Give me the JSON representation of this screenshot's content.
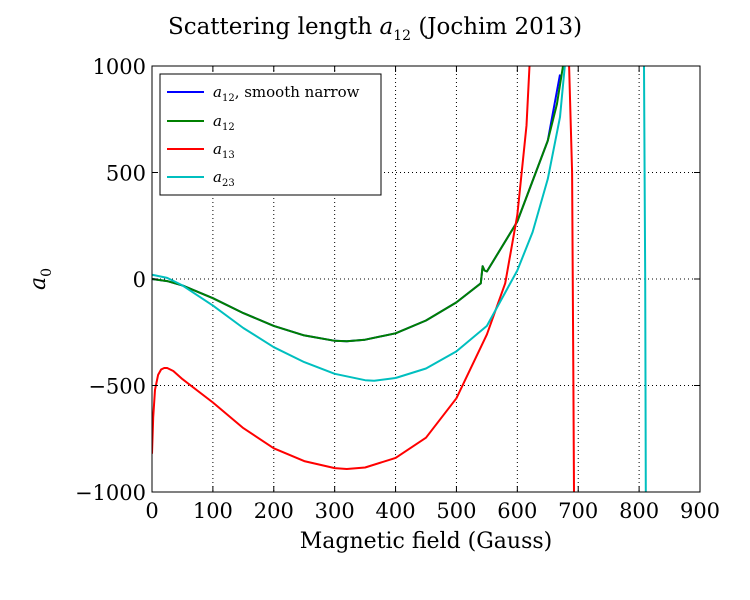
{
  "chart_data": {
    "type": "line",
    "title": "Scattering length",
    "title_symbol": "a",
    "title_subscript": "12",
    "title_suffix": "(Jochim 2013)",
    "xlabel": "Magnetic field (Gauss)",
    "ylabel_symbol": "a",
    "ylabel_subscript": "0",
    "xlim": [
      0,
      900
    ],
    "ylim": [
      -1000,
      1000
    ],
    "xticks": [
      0,
      100,
      200,
      300,
      400,
      500,
      600,
      700,
      800,
      900
    ],
    "yticks": [
      -1000,
      -500,
      0,
      500,
      1000
    ],
    "xtick_labels": [
      "0",
      "100",
      "200",
      "300",
      "400",
      "500",
      "600",
      "700",
      "800",
      "900"
    ],
    "ytick_labels": [
      "−1000",
      "−500",
      "0",
      "500",
      "1000"
    ],
    "grid": true,
    "grid_style": "dotted",
    "legend_position": "top-left",
    "series": [
      {
        "name_symbol": "a",
        "name_subscript": "12",
        "name_suffix": ", smooth narrow",
        "color": "#0000ff",
        "x": [
          0,
          25,
          50,
          100,
          150,
          200,
          250,
          300,
          320,
          350,
          400,
          450,
          500,
          540,
          543,
          546,
          550,
          600,
          650,
          670
        ],
        "y": [
          0,
          -10,
          -30,
          -90,
          -160,
          -220,
          -265,
          -290,
          -292,
          -285,
          -255,
          -195,
          -110,
          -20,
          60,
          40,
          35,
          270,
          650,
          960
        ]
      },
      {
        "name_symbol": "a",
        "name_subscript": "12",
        "name_suffix": "",
        "color": "#008000",
        "x": [
          0,
          25,
          50,
          100,
          150,
          200,
          250,
          300,
          320,
          350,
          400,
          450,
          500,
          540,
          543,
          546,
          550,
          600,
          650,
          665,
          675
        ],
        "y": [
          0,
          -10,
          -30,
          -90,
          -160,
          -220,
          -265,
          -290,
          -292,
          -285,
          -255,
          -195,
          -110,
          -20,
          60,
          40,
          35,
          270,
          650,
          820,
          1000
        ]
      },
      {
        "name_symbol": "a",
        "name_subscript": "13",
        "name_suffix": "",
        "color": "#ff0000",
        "x": [
          0,
          2,
          5,
          10,
          15,
          20,
          25,
          35,
          50,
          100,
          150,
          200,
          250,
          300,
          320,
          350,
          400,
          450,
          500,
          550,
          580,
          600,
          615,
          620,
          null,
          685,
          690,
          692,
          693
        ],
        "y": [
          -820,
          -650,
          -520,
          -450,
          -425,
          -418,
          -418,
          -432,
          -470,
          -580,
          -700,
          -795,
          -855,
          -888,
          -892,
          -885,
          -840,
          -745,
          -560,
          -260,
          -20,
          300,
          720,
          1000,
          null,
          1000,
          500,
          -500,
          -1000
        ]
      },
      {
        "name_symbol": "a",
        "name_subscript": "23",
        "name_suffix": "",
        "color": "#00bfbf",
        "x": [
          0,
          25,
          50,
          100,
          150,
          200,
          250,
          300,
          350,
          365,
          400,
          450,
          500,
          550,
          600,
          625,
          650,
          670,
          678,
          null,
          808,
          810,
          811
        ],
        "y": [
          20,
          5,
          -30,
          -125,
          -230,
          -320,
          -390,
          -445,
          -475,
          -478,
          -465,
          -420,
          -340,
          -220,
          40,
          220,
          470,
          760,
          1000,
          null,
          1000,
          0,
          -1000
        ]
      }
    ]
  }
}
